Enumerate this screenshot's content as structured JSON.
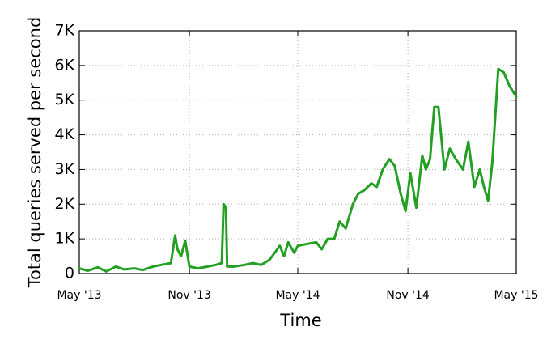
{
  "chart_data": {
    "type": "line",
    "title": "",
    "xlabel": "Time",
    "ylabel": "Total queries served per second",
    "ylim": [
      0,
      7000
    ],
    "xlim": [
      "2013-05-01",
      "2015-05-01"
    ],
    "grid": true,
    "y_ticks": [
      {
        "value": 0,
        "label": "0"
      },
      {
        "value": 1000,
        "label": "1K"
      },
      {
        "value": 2000,
        "label": "2K"
      },
      {
        "value": 3000,
        "label": "3K"
      },
      {
        "value": 4000,
        "label": "4K"
      },
      {
        "value": 5000,
        "label": "5K"
      },
      {
        "value": 6000,
        "label": "6K"
      },
      {
        "value": 7000,
        "label": "7K"
      }
    ],
    "x_ticks": [
      {
        "value": "2013-05-01",
        "label": "May '13"
      },
      {
        "value": "2013-11-01",
        "label": "Nov '13"
      },
      {
        "value": "2014-05-01",
        "label": "May '14"
      },
      {
        "value": "2014-11-01",
        "label": "Nov '14"
      },
      {
        "value": "2015-05-01",
        "label": "May '15"
      }
    ],
    "series": [
      {
        "color": "#22a022",
        "x": [
          "2013-05-01",
          "2013-05-15",
          "2013-06-01",
          "2013-06-15",
          "2013-07-01",
          "2013-07-15",
          "2013-08-01",
          "2013-08-15",
          "2013-09-01",
          "2013-09-15",
          "2013-10-01",
          "2013-10-08",
          "2013-10-12",
          "2013-10-18",
          "2013-10-25",
          "2013-11-01",
          "2013-11-15",
          "2013-12-01",
          "2013-12-15",
          "2013-12-25",
          "2013-12-28",
          "2014-01-01",
          "2014-01-03",
          "2014-01-15",
          "2014-02-01",
          "2014-02-15",
          "2014-03-01",
          "2014-03-15",
          "2014-04-01",
          "2014-04-08",
          "2014-04-15",
          "2014-04-25",
          "2014-05-01",
          "2014-05-15",
          "2014-06-01",
          "2014-06-10",
          "2014-06-20",
          "2014-07-01",
          "2014-07-10",
          "2014-07-20",
          "2014-08-01",
          "2014-08-10",
          "2014-08-20",
          "2014-09-01",
          "2014-09-10",
          "2014-09-20",
          "2014-10-01",
          "2014-10-10",
          "2014-10-20",
          "2014-10-28",
          "2014-11-05",
          "2014-11-15",
          "2014-11-25",
          "2014-12-01",
          "2014-12-08",
          "2014-12-15",
          "2014-12-22",
          "2015-01-01",
          "2015-01-10",
          "2015-01-20",
          "2015-02-01",
          "2015-02-10",
          "2015-02-20",
          "2015-03-01",
          "2015-03-08",
          "2015-03-15",
          "2015-03-22",
          "2015-04-01",
          "2015-04-10",
          "2015-04-20",
          "2015-05-01"
        ],
        "y": [
          150,
          80,
          180,
          60,
          200,
          120,
          150,
          100,
          200,
          250,
          300,
          1100,
          700,
          500,
          950,
          200,
          150,
          200,
          250,
          300,
          2000,
          1900,
          200,
          200,
          250,
          300,
          250,
          400,
          800,
          500,
          900,
          600,
          800,
          850,
          900,
          700,
          1000,
          1000,
          1500,
          1300,
          2000,
          2300,
          2400,
          2600,
          2500,
          3000,
          3300,
          3100,
          2300,
          1800,
          2900,
          1900,
          3400,
          3000,
          3300,
          4800,
          4800,
          3000,
          3600,
          3300,
          3000,
          3800,
          2500,
          3000,
          2500,
          2100,
          3200,
          5900,
          5800,
          5400,
          5100
        ]
      }
    ]
  }
}
